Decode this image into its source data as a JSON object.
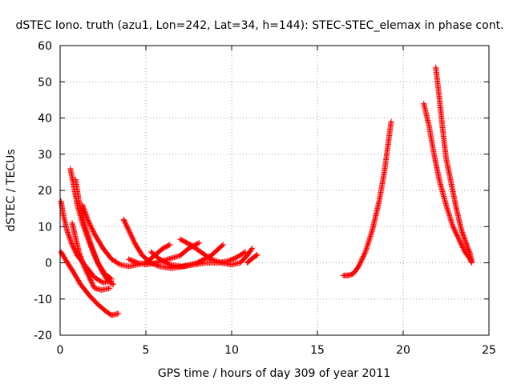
{
  "chart_data": {
    "type": "scatter",
    "title": "dSTEC Iono. truth (azu1, Lon=242, Lat=34, h=144): STEC-STEC_elemax in phase cont.",
    "xlabel": "GPS time / hours of day 309 of year 2011",
    "ylabel": "dSTEC  / TECUs",
    "xlim": [
      0,
      25
    ],
    "ylim": [
      -20,
      60
    ],
    "xticks": [
      "0",
      "5",
      "10",
      "15",
      "20",
      "25"
    ],
    "yticks": [
      "-20",
      "-10",
      "0",
      "10",
      "20",
      "30",
      "40",
      "50",
      "60"
    ],
    "grid": true,
    "marker": "+",
    "color": "#ff0000",
    "series": [
      {
        "points": [
          [
            0.05,
            17
          ],
          [
            0.2,
            13
          ],
          [
            0.4,
            9
          ],
          [
            0.7,
            5
          ],
          [
            1.0,
            2
          ],
          [
            1.5,
            -1
          ],
          [
            2.0,
            -4
          ],
          [
            2.5,
            -5.5
          ],
          [
            3.0,
            -5
          ]
        ]
      },
      {
        "points": [
          [
            0.05,
            3
          ],
          [
            0.3,
            1
          ],
          [
            0.7,
            -2
          ],
          [
            1.2,
            -6
          ],
          [
            1.7,
            -9
          ],
          [
            2.2,
            -11.5
          ],
          [
            2.7,
            -13.5
          ],
          [
            3.0,
            -14.5
          ],
          [
            3.4,
            -14
          ]
        ]
      },
      {
        "points": [
          [
            0.6,
            26
          ],
          [
            0.8,
            21
          ],
          [
            1.0,
            16
          ],
          [
            1.3,
            11
          ],
          [
            1.6,
            7
          ],
          [
            2.0,
            2
          ],
          [
            2.4,
            -2
          ],
          [
            2.8,
            -5
          ],
          [
            3.1,
            -6
          ]
        ]
      },
      {
        "points": [
          [
            0.9,
            23
          ],
          [
            1.1,
            17
          ],
          [
            1.4,
            11
          ],
          [
            1.8,
            5
          ],
          [
            2.2,
            0
          ],
          [
            2.6,
            -3
          ],
          [
            3.0,
            -4.5
          ]
        ]
      },
      {
        "points": [
          [
            0.7,
            11
          ],
          [
            0.9,
            7
          ],
          [
            1.1,
            3
          ],
          [
            1.4,
            -1
          ],
          [
            1.7,
            -4
          ],
          [
            2.0,
            -7
          ],
          [
            2.4,
            -7.5
          ],
          [
            2.9,
            -7
          ]
        ]
      },
      {
        "points": [
          [
            1.3,
            16
          ],
          [
            1.6,
            12
          ],
          [
            2.0,
            8
          ],
          [
            2.5,
            4
          ],
          [
            3.0,
            1
          ],
          [
            3.5,
            -0.5
          ],
          [
            4.0,
            -1
          ],
          [
            4.5,
            -0.5
          ],
          [
            5.0,
            0
          ],
          [
            5.5,
            2
          ],
          [
            6.0,
            4
          ],
          [
            6.4,
            5
          ]
        ]
      },
      {
        "points": [
          [
            3.7,
            12
          ],
          [
            4.0,
            9
          ],
          [
            4.4,
            5
          ],
          [
            4.8,
            2
          ],
          [
            5.3,
            0
          ],
          [
            5.8,
            -1
          ],
          [
            6.5,
            -1.5
          ],
          [
            7.2,
            -1
          ],
          [
            8.0,
            0
          ],
          [
            8.8,
            2
          ],
          [
            9.5,
            5
          ]
        ]
      },
      {
        "points": [
          [
            4.0,
            1
          ],
          [
            4.5,
            0
          ],
          [
            5.0,
            -0.5
          ],
          [
            5.6,
            0
          ],
          [
            6.3,
            1
          ],
          [
            7.0,
            2
          ],
          [
            7.5,
            4
          ],
          [
            8.1,
            5.5
          ]
        ]
      },
      {
        "points": [
          [
            7.0,
            6.5
          ],
          [
            7.6,
            5
          ],
          [
            8.2,
            3
          ],
          [
            8.8,
            1
          ],
          [
            9.4,
            0
          ],
          [
            10.0,
            -0.5
          ],
          [
            10.5,
            0
          ],
          [
            10.9,
            2
          ],
          [
            11.2,
            4
          ]
        ]
      },
      {
        "points": [
          [
            5.3,
            3
          ],
          [
            5.8,
            1
          ],
          [
            6.4,
            -0.5
          ],
          [
            7.1,
            -1
          ],
          [
            7.8,
            -0.5
          ],
          [
            8.5,
            0
          ],
          [
            9.2,
            0
          ],
          [
            9.8,
            0.5
          ],
          [
            10.3,
            1.5
          ],
          [
            10.8,
            3
          ]
        ]
      },
      {
        "points": [
          [
            10.9,
            0
          ],
          [
            11.1,
            0.8
          ],
          [
            11.3,
            1.6
          ],
          [
            11.5,
            2.2
          ]
        ]
      },
      {
        "points": [
          [
            16.5,
            -3.5
          ],
          [
            16.8,
            -3.5
          ],
          [
            17.1,
            -3
          ],
          [
            17.4,
            -1
          ],
          [
            17.8,
            3
          ],
          [
            18.2,
            9
          ],
          [
            18.6,
            17
          ],
          [
            18.9,
            25
          ],
          [
            19.1,
            32
          ],
          [
            19.3,
            39
          ]
        ]
      },
      {
        "points": [
          [
            21.2,
            44
          ],
          [
            21.5,
            38
          ],
          [
            21.8,
            30
          ],
          [
            22.1,
            23
          ],
          [
            22.5,
            16
          ],
          [
            22.9,
            10
          ],
          [
            23.3,
            6
          ],
          [
            23.6,
            3
          ],
          [
            23.9,
            1
          ],
          [
            24.0,
            0
          ]
        ]
      },
      {
        "points": [
          [
            21.9,
            54
          ],
          [
            22.1,
            46
          ],
          [
            22.3,
            37
          ],
          [
            22.5,
            29
          ],
          [
            22.8,
            22
          ],
          [
            23.1,
            15
          ],
          [
            23.4,
            9
          ],
          [
            23.7,
            5
          ],
          [
            23.9,
            2.5
          ],
          [
            24.0,
            0.5
          ]
        ]
      }
    ]
  }
}
